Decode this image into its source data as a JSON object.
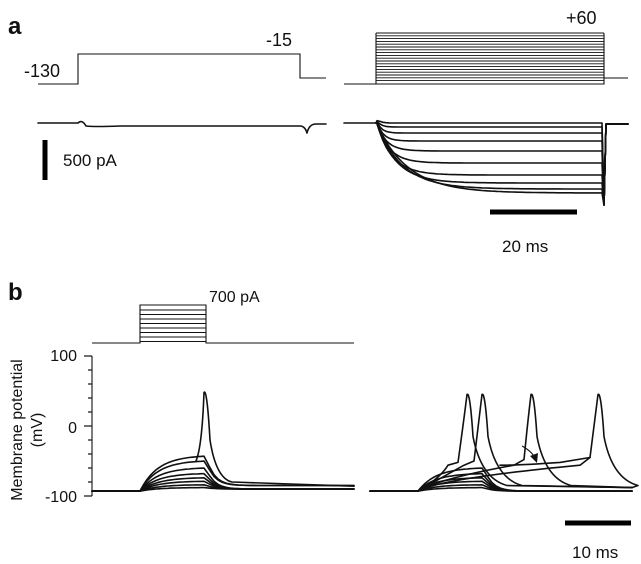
{
  "panel_a": {
    "label": "a",
    "left_protocol": {
      "holding_mv": "-130",
      "step_mv": "-15"
    },
    "right_protocol": {
      "top_step_mv": "+60"
    },
    "current_scale": "500 pA",
    "time_scale": "20 ms"
  },
  "panel_b": {
    "label": "b",
    "current_step_label": "700 pA",
    "y_axis": {
      "label": "Membrane potential",
      "unit": "(mV)",
      "ticks": [
        "100",
        "0",
        "-100"
      ]
    },
    "time_scale": "10 ms"
  },
  "chart_data": [
    {
      "type": "line",
      "panel": "a",
      "kind": "voltage-clamp currents (family of steps up to +60 mV from -130 mV)",
      "scales": {
        "current": "500 pA",
        "time": "20 ms"
      }
    },
    {
      "type": "line",
      "panel": "b",
      "kind": "current-clamp membrane potential responses",
      "ylabel": "Membrane potential (mV)",
      "yticks": [
        100,
        0,
        -100
      ],
      "ylim": [
        -100,
        100
      ],
      "resting_potential_mv": -93,
      "left_traces_peak_mv": [
        -88,
        -84,
        -79,
        -74,
        -68,
        -60,
        -50,
        -43
      ],
      "left_spike_peak_mv": 48,
      "right_spike_peaks_mv": [
        45,
        45,
        44,
        45
      ],
      "scales": {
        "current_step": "700 pA",
        "time": "10 ms"
      }
    }
  ]
}
